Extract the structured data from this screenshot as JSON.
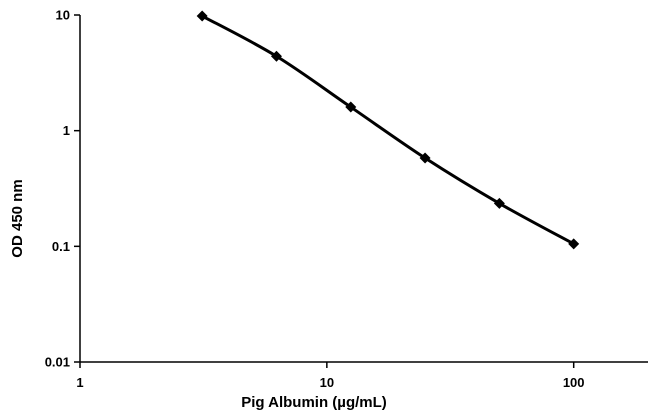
{
  "chart_data": {
    "type": "line",
    "title": "",
    "xlabel": "Pig Albumin (µg/mL)",
    "ylabel": "OD 450 nm",
    "x_scale": "log",
    "y_scale": "log",
    "xlim": [
      1,
      200
    ],
    "ylim": [
      0.01,
      10
    ],
    "x_ticks": [
      1,
      10,
      100
    ],
    "x_tick_labels": [
      "1",
      "10",
      "100"
    ],
    "y_ticks": [
      0.01,
      0.1,
      1,
      10
    ],
    "y_tick_labels": [
      "0.01",
      "0.1",
      "1",
      "10"
    ],
    "grid": false,
    "legend": "none",
    "series": [
      {
        "x": [
          3.125,
          6.25,
          12.5,
          25,
          50,
          100
        ],
        "y": [
          9.8,
          4.4,
          1.6,
          0.58,
          0.235,
          0.105
        ],
        "color": "#000000",
        "marker": "diamond"
      }
    ]
  }
}
